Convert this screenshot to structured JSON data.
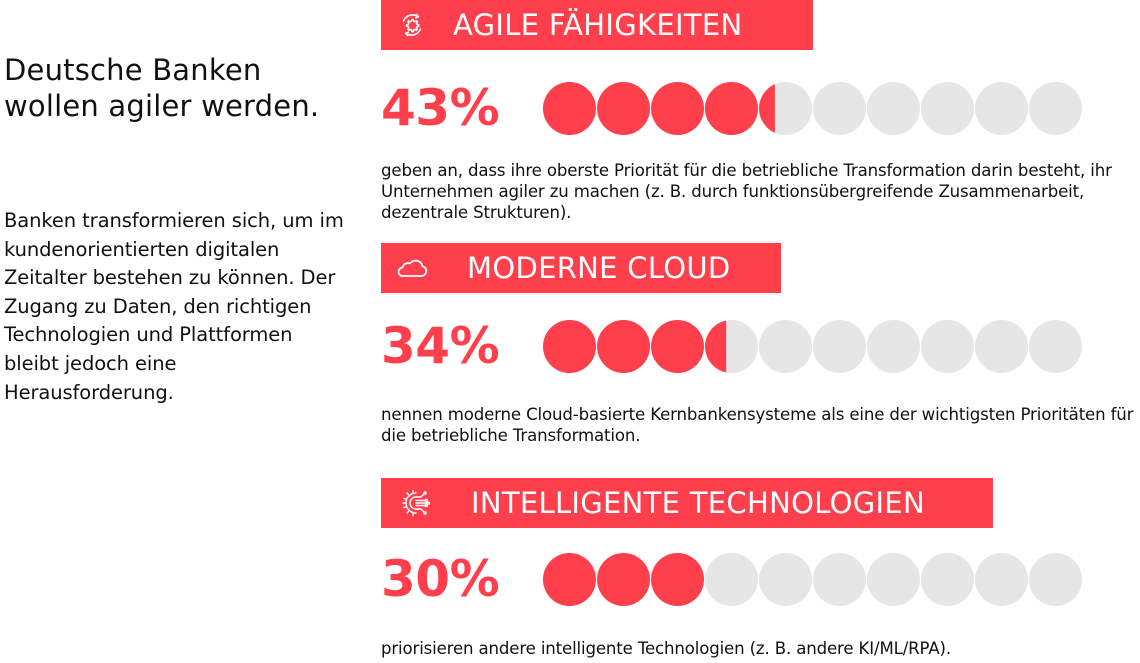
{
  "intro": {
    "title": "Deutsche Banken wollen agiler werden.",
    "body": "Banken transformieren sich, um im kundenorientierten digitalen Zeitalter bestehen zu können. Der Zugang zu Daten, den richtigen Technologien und Plattformen bleibt jedoch eine Herausforderung."
  },
  "colors": {
    "accent": "#ff3f4c",
    "empty_dot": "#e6e6e6",
    "text": "#111111",
    "banner_text": "#ffffff"
  },
  "sections": [
    {
      "icon": "gear-cycle-icon",
      "heading": "AGILE FÄHIGKEITEN",
      "percent_label": "43%",
      "percent_value": 43,
      "description": "geben an, dass ihre oberste Priorität für die betriebliche Transformation darin besteht, ihr Unternehmen agiler zu machen (z. B. durch funktionsübergreifende Zusammenarbeit, dezentrale Strukturen)."
    },
    {
      "icon": "cloud-icon",
      "heading": "MODERNE CLOUD",
      "percent_label": "34%",
      "percent_value": 34,
      "description": "nennen moderne Cloud-basierte Kernbankensysteme als eine der wichtigsten Prioritäten für die betriebliche Transformation."
    },
    {
      "icon": "ai-gear-circuit-icon",
      "heading": "INTELLIGENTE TECHNOLOGIEN",
      "percent_label": "30%",
      "percent_value": 30,
      "description": "priorisieren andere intelligente Technologien (z. B. andere KI/ML/RPA)."
    }
  ],
  "dot_scale": {
    "count": 10,
    "max": 100
  }
}
